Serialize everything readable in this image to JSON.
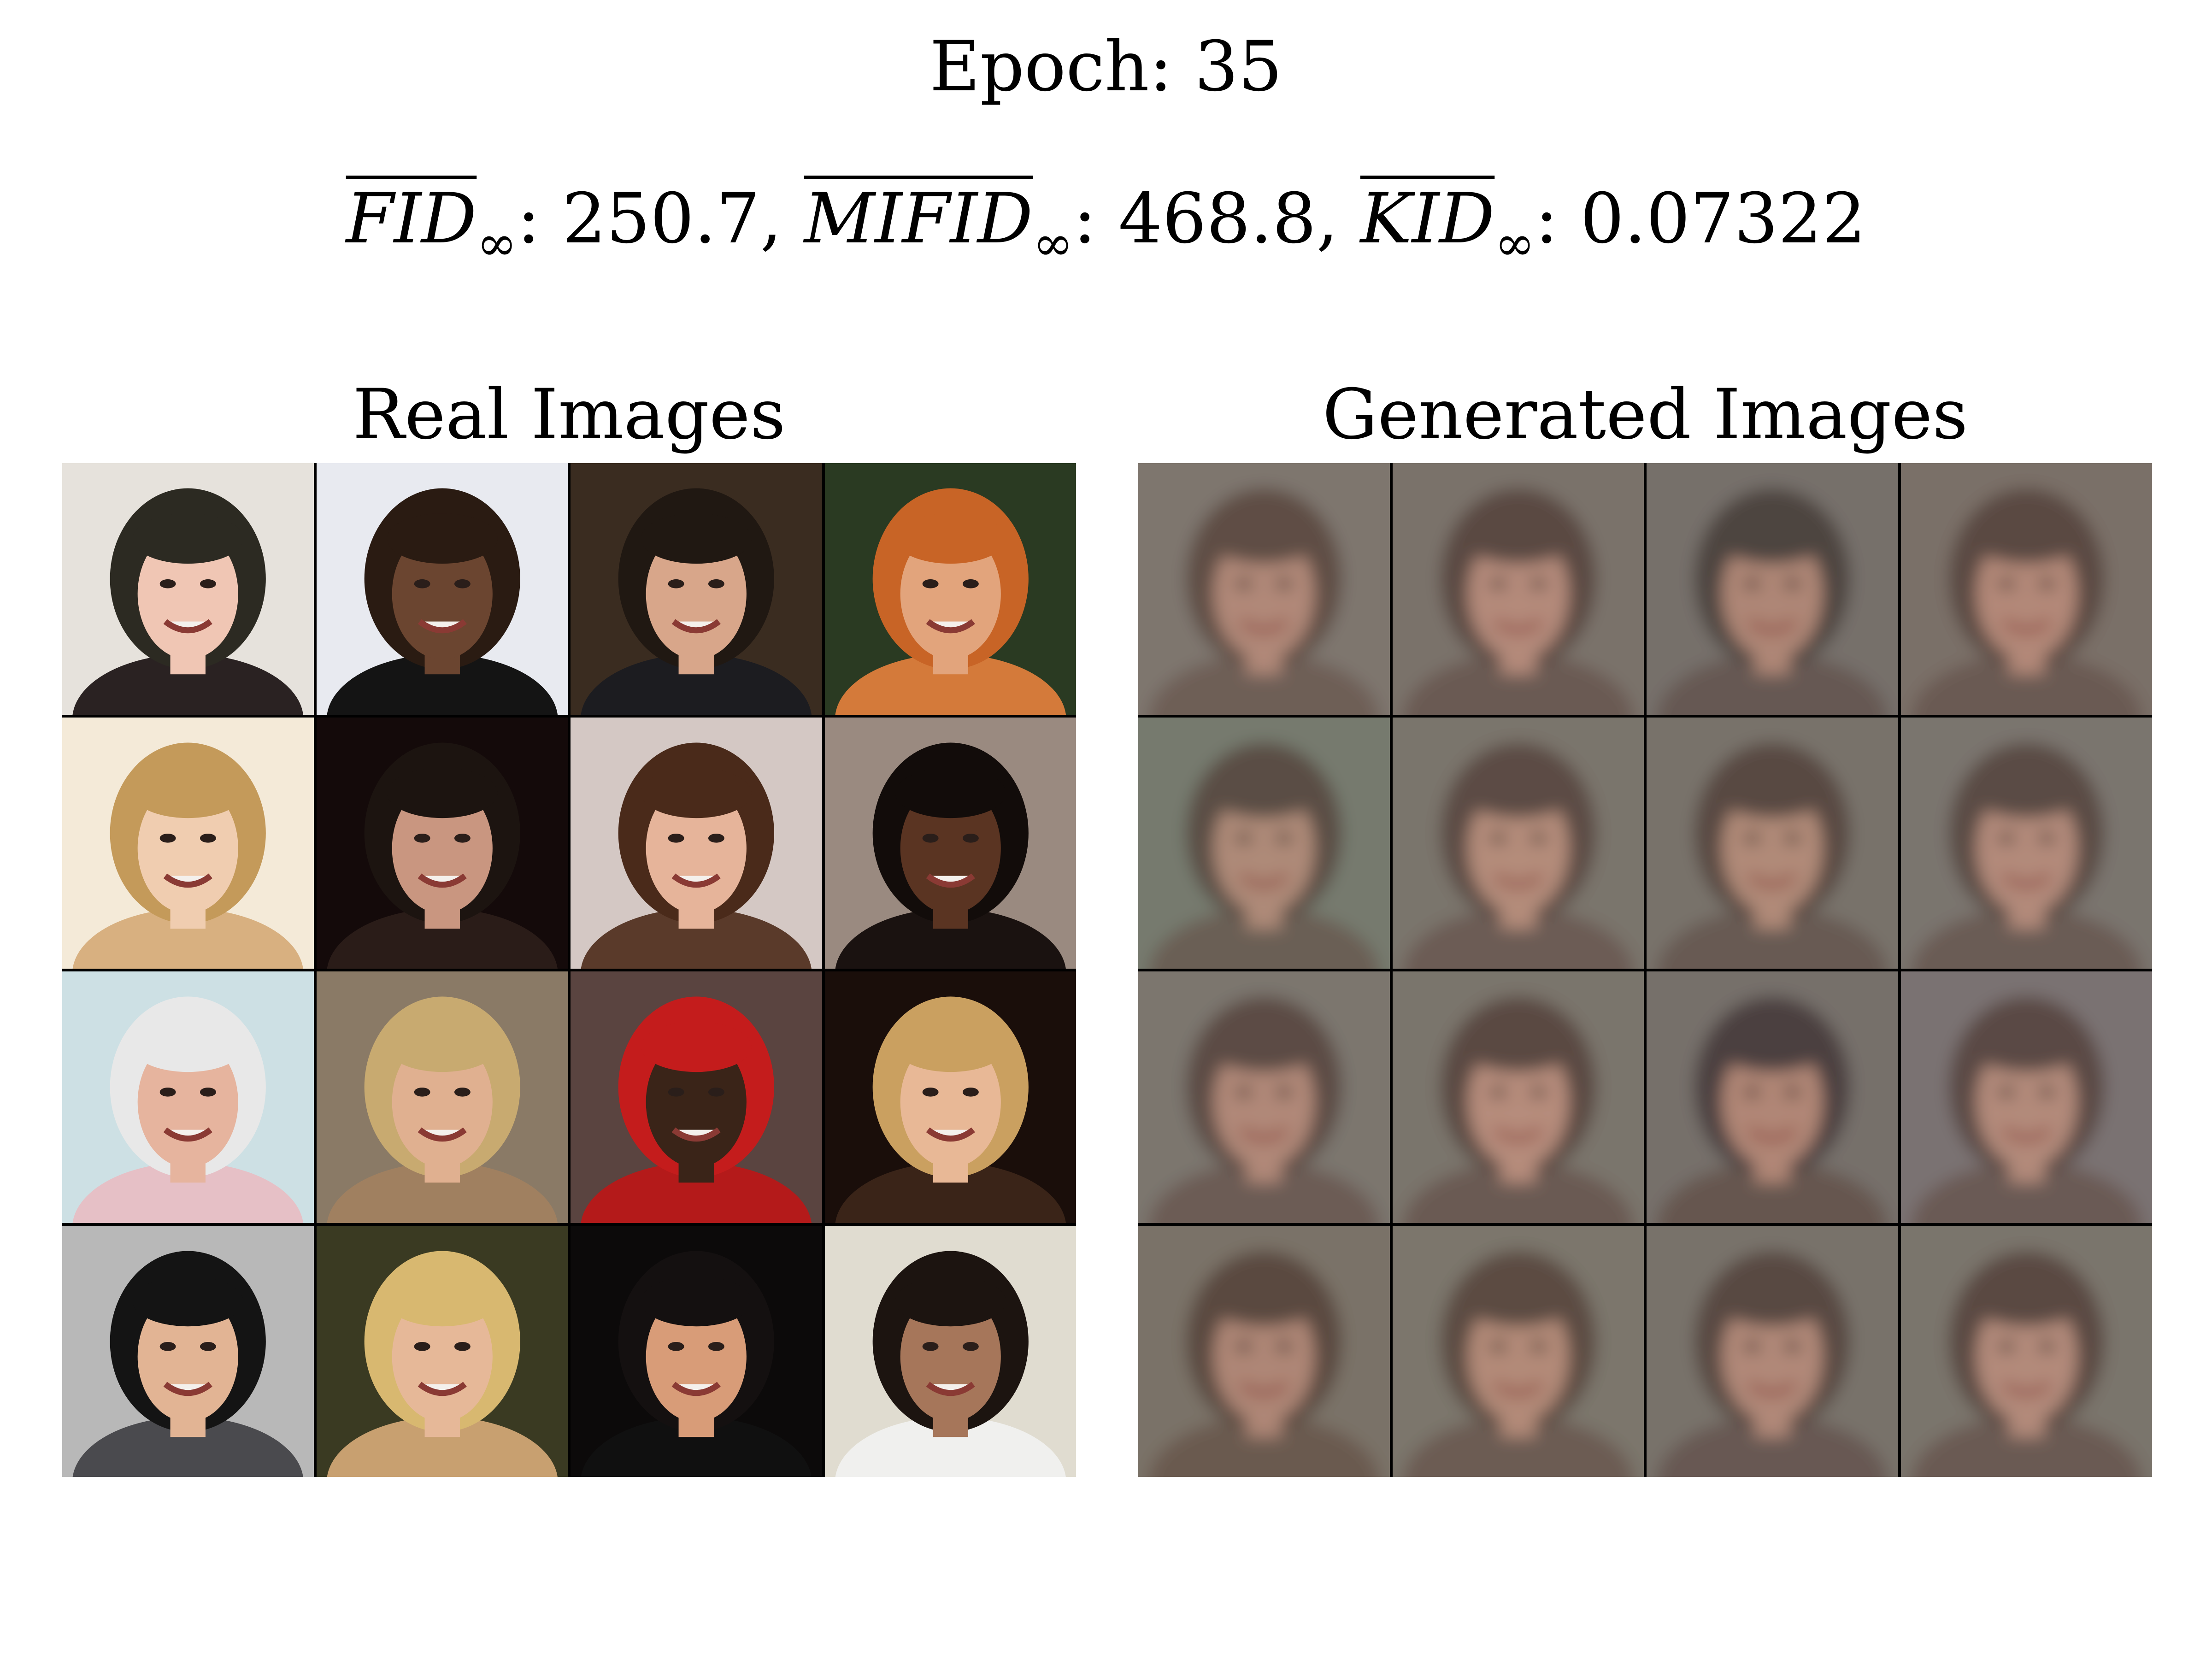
{
  "title": "Epoch: 35",
  "metrics": [
    {
      "name": "FID",
      "sub": "∞",
      "value": "250.7",
      "sep": ", "
    },
    {
      "name": "MIFID",
      "sub": "∞",
      "value": "468.8",
      "sep": ", "
    },
    {
      "name": "KID",
      "sub": "∞",
      "value": "0.07322",
      "sep": ""
    }
  ],
  "panels": {
    "real": {
      "title": "Real Images",
      "tiles": [
        {
          "bg": "#e6e2dc",
          "skin": "#f0c6b4",
          "hair": "#2c2a22",
          "shirt": "#2a2222"
        },
        {
          "bg": "#e8eaf0",
          "skin": "#6b4530",
          "hair": "#2a1b12",
          "shirt": "#141414"
        },
        {
          "bg": "#3a2c20",
          "skin": "#d8a68a",
          "hair": "#201812",
          "shirt": "#1c1c20"
        },
        {
          "bg": "#2a3a22",
          "skin": "#e2a47c",
          "hair": "#c86426",
          "shirt": "#d47a3a"
        },
        {
          "bg": "#f4ead8",
          "skin": "#f0cdb0",
          "hair": "#c49a5a",
          "shirt": "#d8b080"
        },
        {
          "bg": "#140a0a",
          "skin": "#c99680",
          "hair": "#1c1410",
          "shirt": "#2a1c18"
        },
        {
          "bg": "#d4c8c4",
          "skin": "#e6b49a",
          "hair": "#4a2a1a",
          "shirt": "#5a3a2a"
        },
        {
          "bg": "#9a8a80",
          "skin": "#5a3422",
          "hair": "#120c0a",
          "shirt": "#1a1210"
        },
        {
          "bg": "#cde0e4",
          "skin": "#e6b49e",
          "hair": "#e8e8e8",
          "shirt": "#e6c0c6"
        },
        {
          "bg": "#8a7a66",
          "skin": "#e0b090",
          "hair": "#c8aa70",
          "shirt": "#a08060"
        },
        {
          "bg": "#5a4440",
          "skin": "#3a2418",
          "hair": "#c41c1c",
          "shirt": "#b41a1a"
        },
        {
          "bg": "#1a0e0a",
          "skin": "#e8b896",
          "hair": "#caa060",
          "shirt": "#3a2418"
        },
        {
          "bg": "#b8b8b8",
          "skin": "#e2b494",
          "hair": "#141414",
          "shirt": "#4a4a4e"
        },
        {
          "bg": "#3a3a22",
          "skin": "#e6b898",
          "hair": "#d8b870",
          "shirt": "#c8a070"
        },
        {
          "bg": "#0c0a0a",
          "skin": "#d89c78",
          "hair": "#141010",
          "shirt": "#101010"
        },
        {
          "bg": "#e0dcd0",
          "skin": "#a6765a",
          "hair": "#1c1410",
          "shirt": "#f0f0ee"
        }
      ]
    },
    "generated": {
      "title": "Generated Images",
      "tiles": [
        {
          "bg": "#7e766e",
          "skin": "#b08878",
          "hair": "#5e4e44",
          "shirt": "#6e5e56"
        },
        {
          "bg": "#7a726a",
          "skin": "#b48a7a",
          "hair": "#5a4a42",
          "shirt": "#6a5a52"
        },
        {
          "bg": "#76706a",
          "skin": "#ae8676",
          "hair": "#4e4440",
          "shirt": "#665852"
        },
        {
          "bg": "#7a7068",
          "skin": "#b28878",
          "hair": "#5a4a42",
          "shirt": "#6a5a52"
        },
        {
          "bg": "#767a6e",
          "skin": "#ae8a78",
          "hair": "#5a4e44",
          "shirt": "#6a5e54"
        },
        {
          "bg": "#7a746c",
          "skin": "#b48c7a",
          "hair": "#5c4c44",
          "shirt": "#6c5c54"
        },
        {
          "bg": "#78726a",
          "skin": "#b08a78",
          "hair": "#584a42",
          "shirt": "#685a52"
        },
        {
          "bg": "#7a746e",
          "skin": "#b28a7a",
          "hair": "#5a4c44",
          "shirt": "#6a5c54"
        },
        {
          "bg": "#7c766e",
          "skin": "#b08878",
          "hair": "#5c4c44",
          "shirt": "#6c5c54"
        },
        {
          "bg": "#7a746c",
          "skin": "#b68c7c",
          "hair": "#5a4a42",
          "shirt": "#6a5a52"
        },
        {
          "bg": "#76706a",
          "skin": "#b08676",
          "hair": "#4c4040",
          "shirt": "#665650"
        },
        {
          "bg": "#7a7272",
          "skin": "#b28a7a",
          "hair": "#5a4a44",
          "shirt": "#6a5a54"
        },
        {
          "bg": "#7a7268",
          "skin": "#ae8676",
          "hair": "#5a4a40",
          "shirt": "#6a5a50"
        },
        {
          "bg": "#7c766c",
          "skin": "#b28a78",
          "hair": "#5c4c42",
          "shirt": "#6c5c52"
        },
        {
          "bg": "#78726a",
          "skin": "#b08878",
          "hair": "#584842",
          "shirt": "#685852"
        },
        {
          "bg": "#7a746c",
          "skin": "#b28a7a",
          "hair": "#5a4a42",
          "shirt": "#6a5a52"
        }
      ]
    }
  }
}
